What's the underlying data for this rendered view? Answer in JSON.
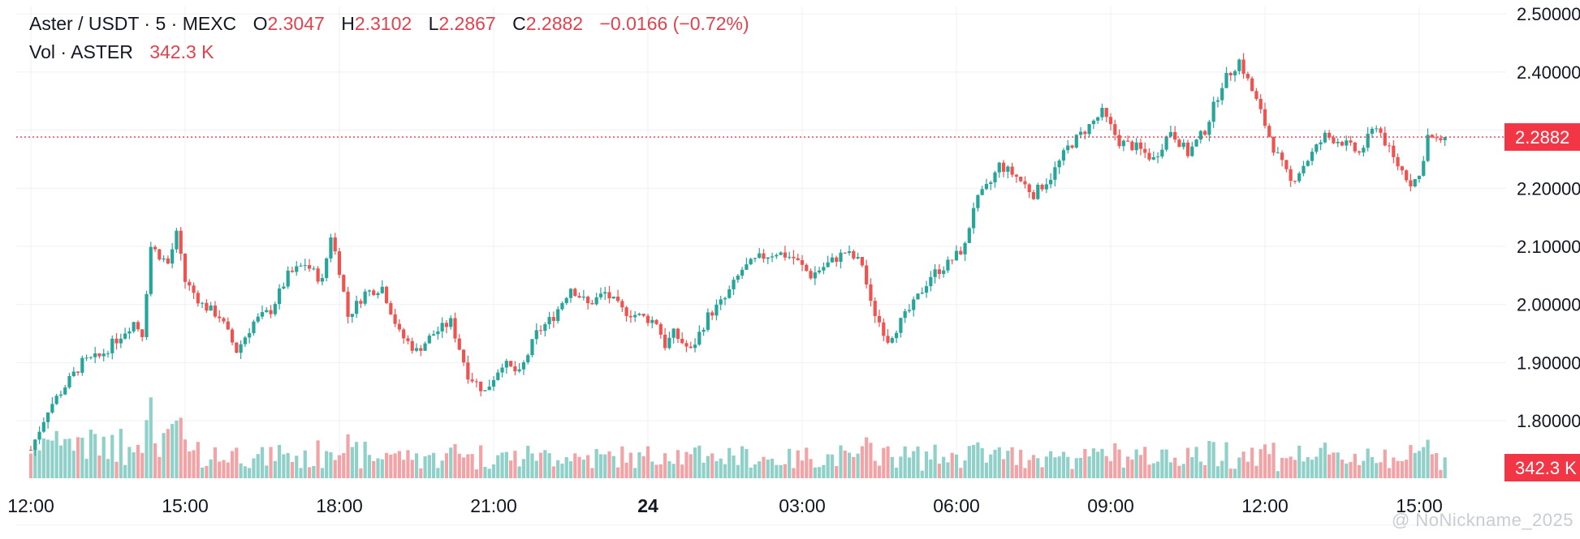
{
  "header": {
    "symbol": "Aster / USDT · 5 · MEXC",
    "open_label": "O",
    "open_value": "2.3047",
    "high_label": "H",
    "high_value": "2.3102",
    "low_label": "L",
    "low_value": "2.2867",
    "close_label": "C",
    "close_value": "2.2882",
    "change": "−0.0166 (−0.72%)",
    "vol_label": "Vol · ASTER",
    "vol_value": "342.3 K"
  },
  "price_badge": "2.2882",
  "volume_badge": "342.3 K",
  "watermark": "@ NoNickname_2025",
  "colors": {
    "up": "#26a69a",
    "down": "#ef5350",
    "up_volume": "#8fd0c9",
    "down_volume": "#f2a3a6",
    "badge": "#f23645",
    "grid": "#eef0f3"
  },
  "chart_data": {
    "type": "candlestick",
    "interval": "5m",
    "y_ticks": [
      "1.80000",
      "1.90000",
      "2.00000",
      "2.10000",
      "2.20000",
      "2.30000",
      "2.40000",
      "2.50000"
    ],
    "ylim": [
      1.75,
      2.51
    ],
    "x_ticks": [
      "12:00",
      "15:00",
      "18:00",
      "21:00",
      "24",
      "03:00",
      "06:00",
      "09:00",
      "12:00",
      "15:00"
    ],
    "last_price": 2.2882,
    "close_path": [
      [
        "12:00",
        1.75
      ],
      [
        "12:20",
        1.82
      ],
      [
        "12:40",
        1.86
      ],
      [
        "13:00",
        1.9
      ],
      [
        "13:20",
        1.91
      ],
      [
        "13:40",
        1.94
      ],
      [
        "14:00",
        1.97
      ],
      [
        "14:10",
        1.95
      ],
      [
        "14:20",
        2.1
      ],
      [
        "14:40",
        2.07
      ],
      [
        "14:50",
        2.12
      ],
      [
        "15:00",
        2.04
      ],
      [
        "15:20",
        2.0
      ],
      [
        "15:40",
        1.98
      ],
      [
        "16:00",
        1.92
      ],
      [
        "16:20",
        1.97
      ],
      [
        "16:40",
        1.99
      ],
      [
        "17:00",
        2.05
      ],
      [
        "17:20",
        2.07
      ],
      [
        "17:40",
        2.04
      ],
      [
        "17:50",
        2.12
      ],
      [
        "18:00",
        2.06
      ],
      [
        "18:10",
        1.98
      ],
      [
        "18:30",
        2.02
      ],
      [
        "18:50",
        2.03
      ],
      [
        "19:10",
        1.95
      ],
      [
        "19:30",
        1.92
      ],
      [
        "19:50",
        1.95
      ],
      [
        "20:10",
        1.97
      ],
      [
        "20:30",
        1.88
      ],
      [
        "20:50",
        1.85
      ],
      [
        "21:10",
        1.9
      ],
      [
        "21:30",
        1.88
      ],
      [
        "21:50",
        1.95
      ],
      [
        "22:10",
        1.98
      ],
      [
        "22:30",
        2.03
      ],
      [
        "22:50",
        2.0
      ],
      [
        "23:10",
        2.02
      ],
      [
        "23:30",
        1.99
      ],
      [
        "23:50",
        1.98
      ],
      [
        "00:10",
        1.97
      ],
      [
        "00:20",
        1.93
      ],
      [
        "00:30",
        1.95
      ],
      [
        "00:50",
        1.92
      ],
      [
        "01:10",
        1.98
      ],
      [
        "01:30",
        2.01
      ],
      [
        "01:50",
        2.06
      ],
      [
        "02:10",
        2.08
      ],
      [
        "02:30",
        2.09
      ],
      [
        "02:50",
        2.08
      ],
      [
        "03:10",
        2.05
      ],
      [
        "03:30",
        2.07
      ],
      [
        "03:50",
        2.09
      ],
      [
        "04:10",
        2.07
      ],
      [
        "04:20",
        2.0
      ],
      [
        "04:40",
        1.94
      ],
      [
        "04:50",
        1.96
      ],
      [
        "05:10",
        2.0
      ],
      [
        "05:30",
        2.05
      ],
      [
        "05:50",
        2.07
      ],
      [
        "06:10",
        2.1
      ],
      [
        "06:20",
        2.17
      ],
      [
        "06:40",
        2.21
      ],
      [
        "06:50",
        2.24
      ],
      [
        "07:10",
        2.22
      ],
      [
        "07:30",
        2.19
      ],
      [
        "07:50",
        2.22
      ],
      [
        "08:10",
        2.27
      ],
      [
        "08:30",
        2.3
      ],
      [
        "08:50",
        2.33
      ],
      [
        "09:10",
        2.28
      ],
      [
        "09:30",
        2.27
      ],
      [
        "09:50",
        2.25
      ],
      [
        "10:10",
        2.3
      ],
      [
        "10:30",
        2.26
      ],
      [
        "10:50",
        2.3
      ],
      [
        "11:10",
        2.38
      ],
      [
        "11:30",
        2.42
      ],
      [
        "11:50",
        2.35
      ],
      [
        "12:10",
        2.27
      ],
      [
        "12:30",
        2.21
      ],
      [
        "12:50",
        2.25
      ],
      [
        "13:10",
        2.29
      ],
      [
        "13:30",
        2.28
      ],
      [
        "13:50",
        2.26
      ],
      [
        "14:10",
        2.31
      ],
      [
        "14:30",
        2.25
      ],
      [
        "14:50",
        2.21
      ],
      [
        "15:00",
        2.22
      ],
      [
        "15:10",
        2.29
      ],
      [
        "15:20",
        2.28
      ],
      [
        "15:30",
        2.2882
      ]
    ]
  }
}
